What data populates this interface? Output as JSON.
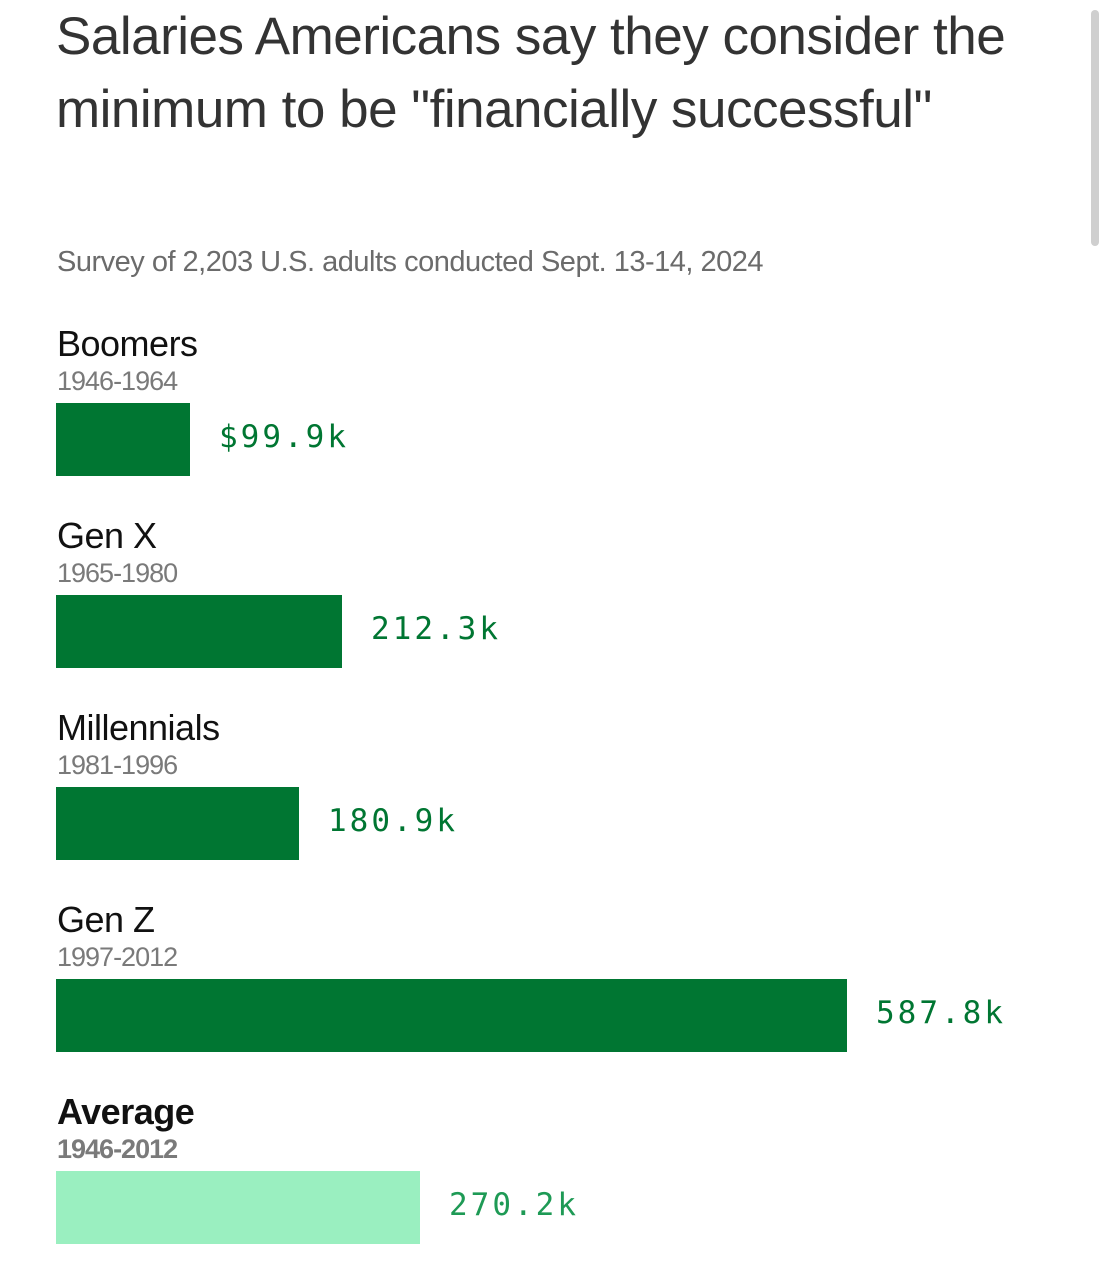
{
  "chart_data": {
    "type": "bar",
    "orientation": "horizontal",
    "title": "Salaries Americans say they consider the minimum to be \"financially successful\"",
    "subtitle": "Survey of 2,203 U.S. adults conducted Sept. 13-14, 2024",
    "xlabel": "",
    "ylabel": "",
    "unit": "thousands of USD",
    "xlim": [
      0,
      587.8
    ],
    "grid": false,
    "legend": "none",
    "categories": [
      "Boomers",
      "Gen X",
      "Millennials",
      "Gen Z",
      "Average"
    ],
    "sublabels": [
      "1946-1964",
      "1965-1980",
      "1981-1996",
      "1997-2012",
      "1946-2012"
    ],
    "values": [
      99.9,
      212.3,
      180.9,
      587.8,
      270.2
    ],
    "value_labels": [
      "$99.9k",
      "212.3k",
      "180.9k",
      "587.8k",
      "270.2k"
    ],
    "highlight": [
      false,
      false,
      false,
      false,
      true
    ],
    "colors": {
      "bar": "#007632",
      "bar_highlight": "#9aefc0",
      "label": "#007632",
      "label_highlight": "#1e9a55",
      "title": "#333333",
      "subtitle": "#6b6b6b",
      "sublabel": "#7a7a7a"
    }
  }
}
